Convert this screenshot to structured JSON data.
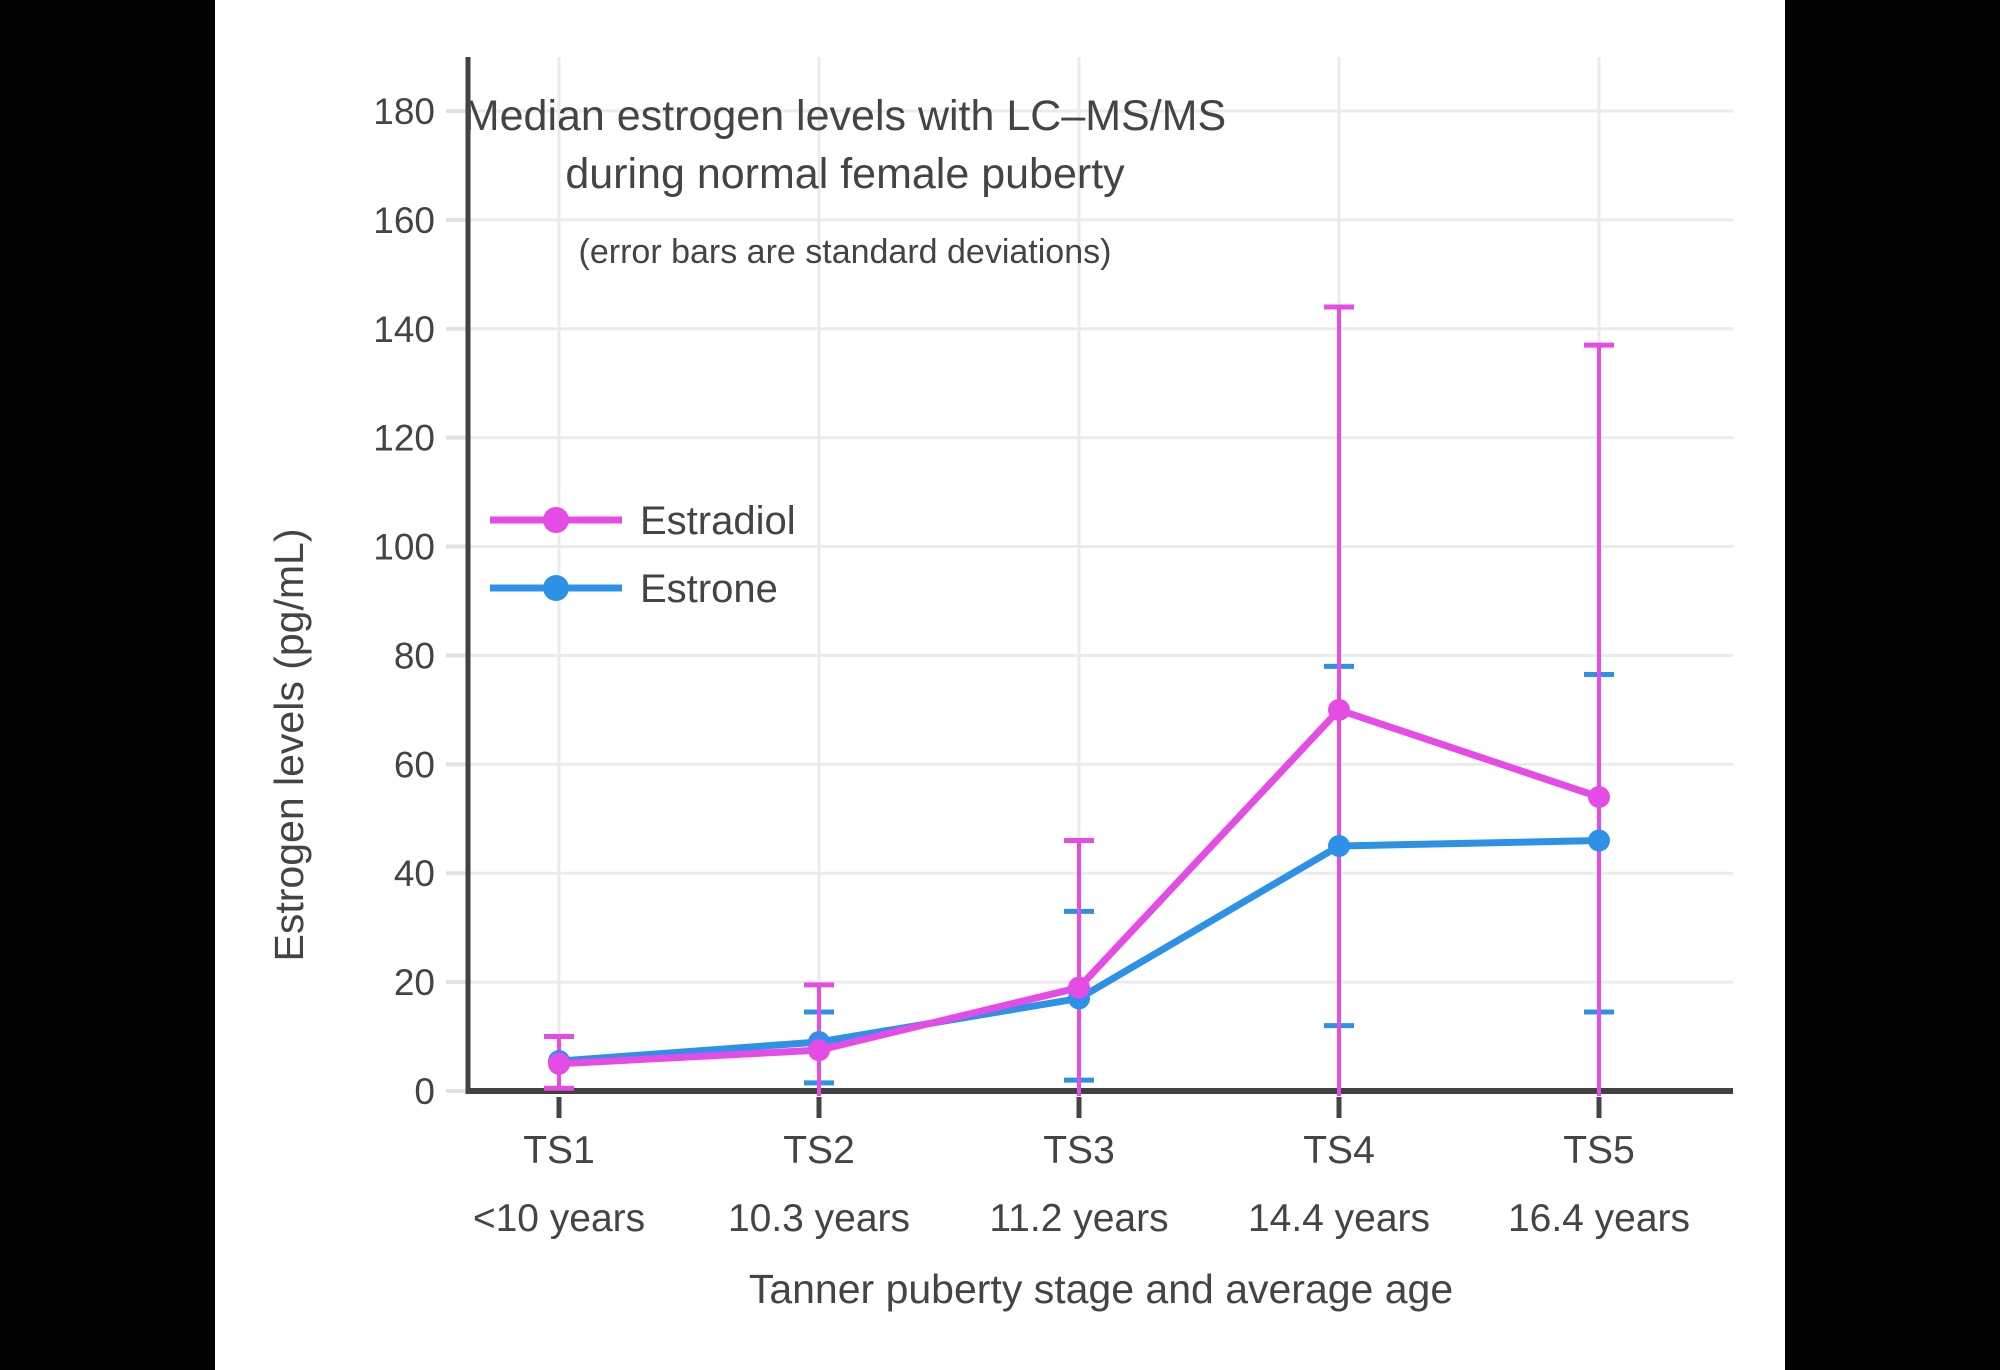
{
  "canvas": {
    "background": "#000000",
    "panel_background": "#FFFFFF"
  },
  "colors": {
    "text": "#444444",
    "axis": "#424242",
    "gridline": "#EBEBEB",
    "y_tick": "#E2E2E2",
    "estradiol": "#E54BE5",
    "estrone": "#2E91E8"
  },
  "chart_data": {
    "type": "line",
    "title_line1": "Median estrogen levels with LC–MS/MS",
    "title_line2": "during normal female puberty",
    "subtitle": "(error bars are standard deviations)",
    "xlabel": "Tanner puberty stage and average age",
    "ylabel": "Estrogen levels (pg/mL)",
    "categories": [
      "TS1",
      "TS2",
      "TS3",
      "TS4",
      "TS5"
    ],
    "category_ages": [
      "<10 years",
      "10.3 years",
      "11.2 years",
      "14.4 years",
      "16.4 years"
    ],
    "yticks": [
      0,
      20,
      40,
      60,
      80,
      100,
      120,
      140,
      160,
      180
    ],
    "ylim": [
      0,
      190
    ],
    "grid": true,
    "error_bars": "standard deviations",
    "legend": {
      "position": "inside-upper-left",
      "entries": [
        "Estradiol",
        "Estrone"
      ]
    },
    "series": [
      {
        "name": "Estradiol",
        "color": "#E54BE5",
        "values": [
          5,
          7.5,
          19,
          70,
          54
        ],
        "error_high": [
          10,
          19.5,
          46,
          144,
          137
        ],
        "error_low": [
          0.5,
          null,
          null,
          null,
          null
        ],
        "error_low_clipped": [
          false,
          true,
          true,
          true,
          true
        ]
      },
      {
        "name": "Estrone",
        "color": "#2E91E8",
        "values": [
          5.5,
          9,
          17,
          45,
          46
        ],
        "error_high": [
          null,
          14.5,
          33,
          78,
          76.5
        ],
        "error_low": [
          null,
          1.5,
          2,
          12,
          14.5
        ],
        "error_low_clipped": [
          false,
          false,
          false,
          false,
          false
        ]
      }
    ]
  }
}
